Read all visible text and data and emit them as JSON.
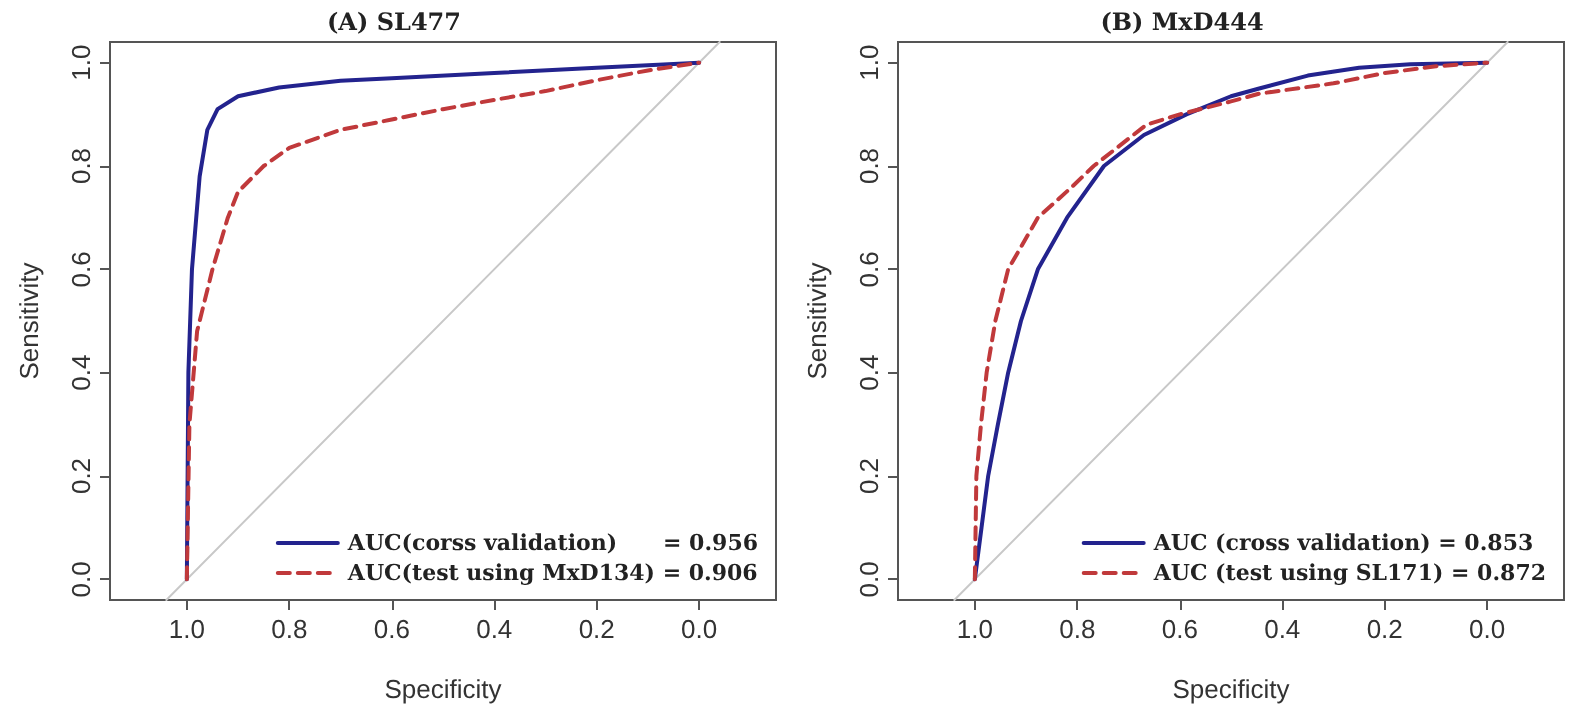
{
  "chart_data": [
    {
      "type": "line",
      "title": "(A) SL477",
      "xlabel": "Specificity",
      "ylabel": "Sensitivity",
      "xlim": [
        1.15,
        -0.15
      ],
      "ylim": [
        -0.04,
        1.04
      ],
      "xticks": [
        {
          "value": 1,
          "label": "1.0"
        },
        {
          "value": 0.8,
          "label": "0.8"
        },
        {
          "value": 0.6,
          "label": "0.6"
        },
        {
          "value": 0.4,
          "label": "0.4"
        },
        {
          "value": 0.2,
          "label": "0.2"
        },
        {
          "value": 0,
          "label": "0.0"
        }
      ],
      "yticks": [
        {
          "value": 0,
          "label": "0.0"
        },
        {
          "value": 0.2,
          "label": "0.2"
        },
        {
          "value": 0.4,
          "label": "0.4"
        },
        {
          "value": 0.6,
          "label": "0.6"
        },
        {
          "value": 0.8,
          "label": "0.8"
        },
        {
          "value": 1,
          "label": "1.0"
        }
      ],
      "grid": false,
      "legend": "bottom right",
      "marker": "none",
      "series": [
        {
          "color": "#c8c8c8",
          "line_style": "solid",
          "x": [
            1.04,
            -0.04
          ],
          "values": [
            -0.04,
            1.04
          ]
        },
        {
          "name": "AUC(corss validation)      = 0.956",
          "color": "#23238e",
          "line_style": "solid",
          "x": [
            1,
            0.997,
            0.99,
            0.975,
            0.96,
            0.94,
            0.9,
            0.82,
            0.7,
            0.6,
            0.4,
            0.2,
            0
          ],
          "values": [
            0,
            0.4,
            0.6,
            0.78,
            0.87,
            0.91,
            0.935,
            0.952,
            0.965,
            0.97,
            0.98,
            0.99,
            1
          ]
        },
        {
          "name": "AUC(test using MxD134) = 0.906",
          "color": "#c0393b",
          "line_style": "dashed",
          "x": [
            1,
            0.995,
            0.98,
            0.95,
            0.92,
            0.9,
            0.85,
            0.8,
            0.7,
            0.6,
            0.5,
            0.4,
            0.3,
            0.2,
            0.1,
            0
          ],
          "values": [
            0,
            0.3,
            0.48,
            0.6,
            0.7,
            0.75,
            0.8,
            0.835,
            0.87,
            0.89,
            0.91,
            0.928,
            0.945,
            0.966,
            0.985,
            1
          ]
        }
      ]
    },
    {
      "type": "line",
      "title": "(B) MxD444",
      "xlabel": "Specificity",
      "ylabel": "Sensitivity",
      "xlim": [
        1.15,
        -0.15
      ],
      "ylim": [
        -0.04,
        1.04
      ],
      "xticks": [
        {
          "value": 1,
          "label": "1.0"
        },
        {
          "value": 0.8,
          "label": "0.8"
        },
        {
          "value": 0.6,
          "label": "0.6"
        },
        {
          "value": 0.4,
          "label": "0.4"
        },
        {
          "value": 0.2,
          "label": "0.2"
        },
        {
          "value": 0,
          "label": "0.0"
        }
      ],
      "yticks": [
        {
          "value": 0,
          "label": "0.0"
        },
        {
          "value": 0.2,
          "label": "0.2"
        },
        {
          "value": 0.4,
          "label": "0.4"
        },
        {
          "value": 0.6,
          "label": "0.6"
        },
        {
          "value": 0.8,
          "label": "0.8"
        },
        {
          "value": 1,
          "label": "1.0"
        }
      ],
      "grid": false,
      "legend": "bottom right",
      "marker": "none",
      "series": [
        {
          "color": "#c8c8c8",
          "line_style": "solid",
          "x": [
            1.04,
            -0.04
          ],
          "values": [
            -0.04,
            1.04
          ]
        },
        {
          "name": "AUC (cross validation) = 0.853",
          "color": "#23238e",
          "line_style": "solid",
          "x": [
            1,
            0.987,
            0.974,
            0.955,
            0.935,
            0.91,
            0.877,
            0.82,
            0.748,
            0.67,
            0.587,
            0.5,
            0.445,
            0.35,
            0.25,
            0.15,
            0
          ],
          "values": [
            0,
            0.1,
            0.2,
            0.3,
            0.4,
            0.5,
            0.6,
            0.7,
            0.8,
            0.86,
            0.9,
            0.935,
            0.95,
            0.975,
            0.99,
            0.997,
            1
          ]
        },
        {
          "name": "AUC (test using SL171) = 0.872",
          "color": "#c0393b",
          "line_style": "dashed",
          "x": [
            1,
            0.997,
            0.988,
            0.977,
            0.96,
            0.935,
            0.877,
            0.81,
            0.768,
            0.665,
            0.6,
            0.5,
            0.445,
            0.3,
            0.2,
            0.1,
            0
          ],
          "values": [
            0,
            0.2,
            0.3,
            0.4,
            0.5,
            0.6,
            0.7,
            0.76,
            0.8,
            0.88,
            0.9,
            0.925,
            0.94,
            0.96,
            0.98,
            0.993,
            1
          ]
        }
      ]
    }
  ]
}
